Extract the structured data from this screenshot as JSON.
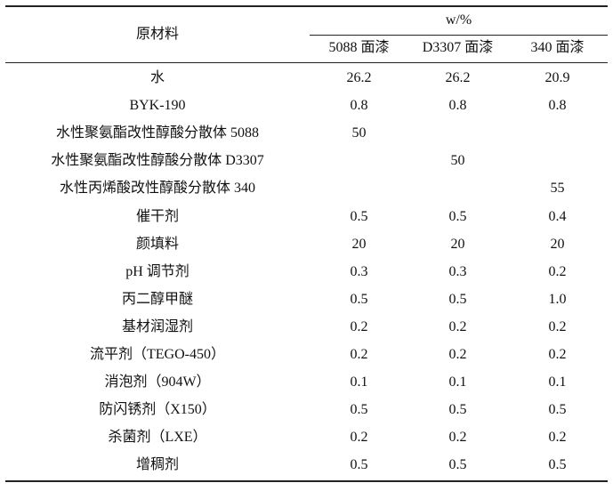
{
  "header": {
    "material_col": "原材料",
    "unit_label": "w/%",
    "subcolumns": [
      "5088 面漆",
      "D3307 面漆",
      "340 面漆"
    ]
  },
  "rows": [
    {
      "name": "水",
      "c1": "26.2",
      "c2": "26.2",
      "c3": "20.9"
    },
    {
      "name": "BYK-190",
      "c1": "0.8",
      "c2": "0.8",
      "c3": "0.8"
    },
    {
      "name": "水性聚氨酯改性醇酸分散体 5088",
      "c1": "50",
      "c2": "",
      "c3": ""
    },
    {
      "name": "水性聚氨酯改性醇酸分散体 D3307",
      "c1": "",
      "c2": "50",
      "c3": ""
    },
    {
      "name": "水性丙烯酸改性醇酸分散体 340",
      "c1": "",
      "c2": "",
      "c3": "55"
    },
    {
      "name": "催干剂",
      "c1": "0.5",
      "c2": "0.5",
      "c3": "0.4"
    },
    {
      "name": "颜填料",
      "c1": "20",
      "c2": "20",
      "c3": "20"
    },
    {
      "name": "pH 调节剂",
      "c1": "0.3",
      "c2": "0.3",
      "c3": "0.2"
    },
    {
      "name": "丙二醇甲醚",
      "c1": "0.5",
      "c2": "0.5",
      "c3": "1.0"
    },
    {
      "name": "基材润湿剂",
      "c1": "0.2",
      "c2": "0.2",
      "c3": "0.2"
    },
    {
      "name": "流平剂（TEGO-450）",
      "c1": "0.2",
      "c2": "0.2",
      "c3": "0.2"
    },
    {
      "name": "消泡剂（904W）",
      "c1": "0.1",
      "c2": "0.1",
      "c3": "0.1"
    },
    {
      "name": "防闪锈剂（X150）",
      "c1": "0.5",
      "c2": "0.5",
      "c3": "0.5"
    },
    {
      "name": "杀菌剂（LXE）",
      "c1": "0.2",
      "c2": "0.2",
      "c3": "0.2"
    },
    {
      "name": "增稠剂",
      "c1": "0.5",
      "c2": "0.5",
      "c3": "0.5"
    }
  ]
}
